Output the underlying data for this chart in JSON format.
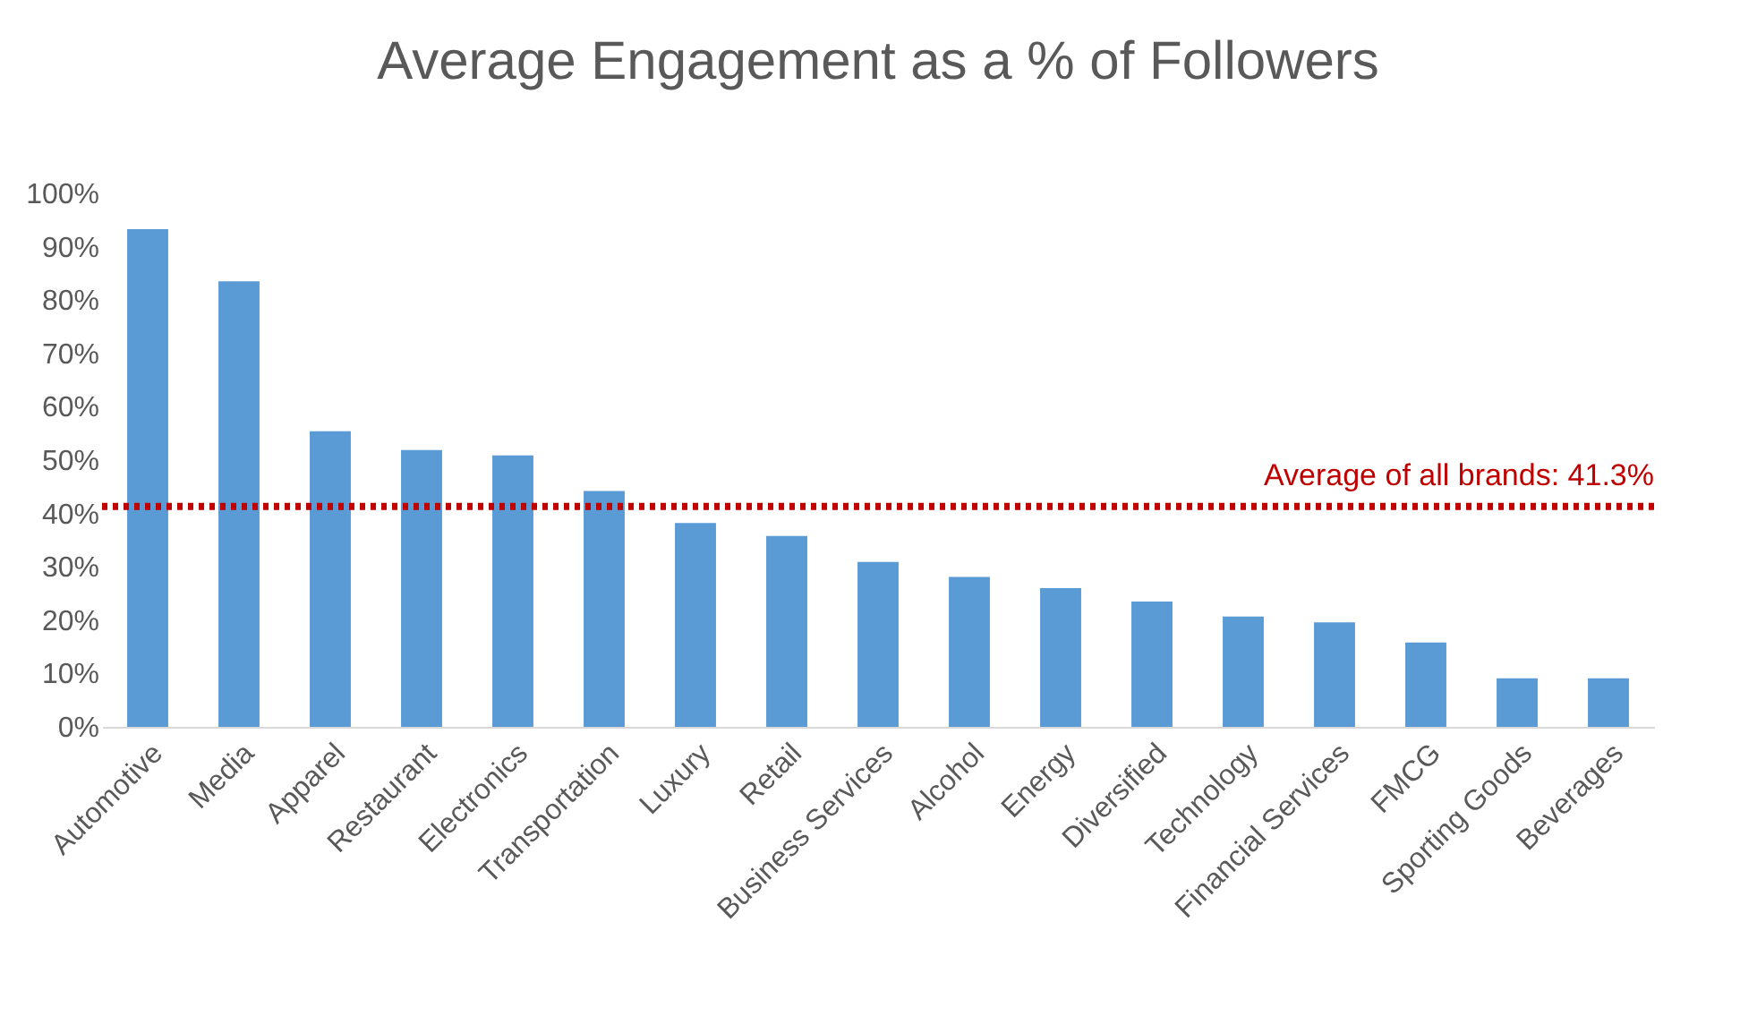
{
  "chart_data": {
    "type": "bar",
    "title": "Average Engagement as a % of Followers",
    "categories": [
      "Automotive",
      "Media",
      "Apparel",
      "Restaurant",
      "Electronics",
      "Transportation",
      "Luxury",
      "Retail",
      "Business Services",
      "Alcohol",
      "Energy",
      "Diversified",
      "Technology",
      "Financial Services",
      "FMCG",
      "Sporting Goods",
      "Beverages"
    ],
    "values": [
      93.3,
      83.5,
      55.4,
      51.9,
      50.9,
      44.2,
      38.2,
      35.8,
      30.9,
      28.1,
      26,
      23.5,
      20.7,
      19.6,
      15.8,
      9.1,
      9.1
    ],
    "color": "#5b9bd5",
    "ylim": [
      0,
      100
    ],
    "yticks": [
      {
        "value": 0,
        "label": "0%"
      },
      {
        "value": 10,
        "label": "10%"
      },
      {
        "value": 20,
        "label": "20%"
      },
      {
        "value": 30,
        "label": "30%"
      },
      {
        "value": 40,
        "label": "40%"
      },
      {
        "value": 50,
        "label": "50%"
      },
      {
        "value": 60,
        "label": "60%"
      },
      {
        "value": 70,
        "label": "70%"
      },
      {
        "value": 80,
        "label": "80%"
      },
      {
        "value": 90,
        "label": "90%"
      },
      {
        "value": 100,
        "label": "100%"
      }
    ],
    "ref_lines": [
      {
        "axis": "y",
        "value": 41.3,
        "label": "Average of all brands: 41.3%",
        "color": "#c00000",
        "line_style": "dotted"
      }
    ],
    "grid": false
  }
}
